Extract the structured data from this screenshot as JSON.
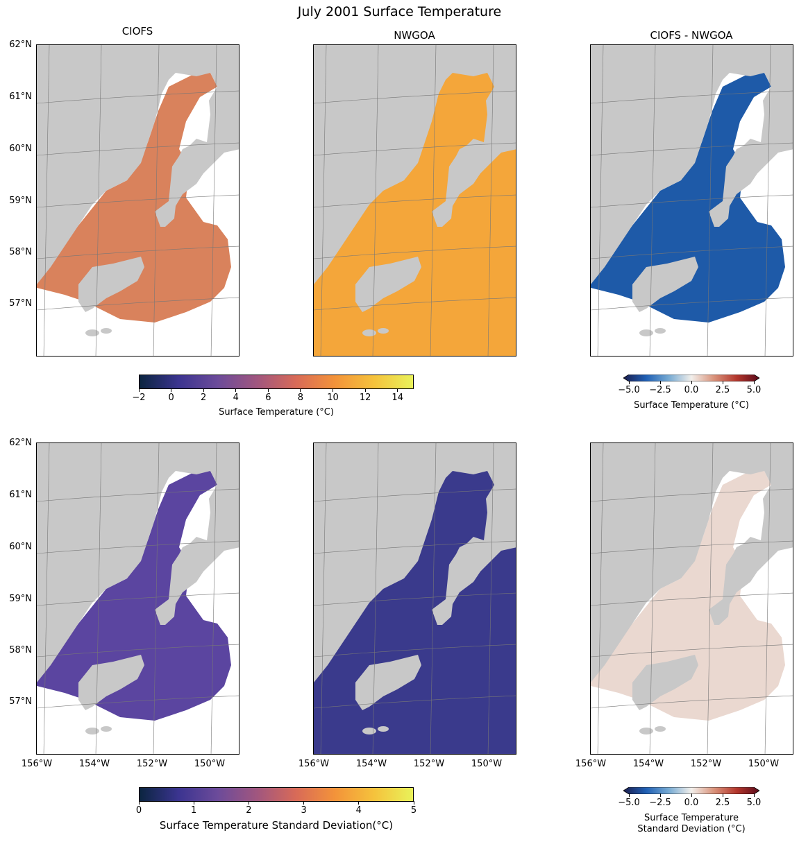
{
  "figure_title": "July 2001 Surface Temperature",
  "panel_titles": [
    "CIOFS",
    "NWGOA",
    "CIOFS - NWGOA"
  ],
  "lat_ticks": [
    "62°N",
    "61°N",
    "60°N",
    "59°N",
    "58°N",
    "57°N"
  ],
  "lon_ticks": [
    "156°W",
    "154°W",
    "152°W",
    "150°W"
  ],
  "colorbars": {
    "temp": {
      "label": "Surface Temperature (°C)",
      "ticks": [
        "−2",
        "0",
        "2",
        "4",
        "6",
        "8",
        "10",
        "12",
        "14"
      ],
      "range": [
        -2,
        15
      ],
      "colors": [
        "#0b2540",
        "#3b3490",
        "#6c4b9a",
        "#a0567f",
        "#d86a58",
        "#f3933a",
        "#f5c23c",
        "#e9f25a"
      ]
    },
    "temp_diff": {
      "label": "Surface Temperature (°C)",
      "ticks": [
        "−5.0",
        "−2.5",
        "0.0",
        "2.5",
        "5.0"
      ],
      "range": [
        -5,
        5
      ],
      "colors": [
        "#1b1d4d",
        "#1f5fb4",
        "#76aad3",
        "#f2efeb",
        "#d9927a",
        "#b3362c",
        "#5a0a1a"
      ]
    },
    "std": {
      "label": "Surface Temperature Standard Deviation(°C)",
      "ticks": [
        "0",
        "1",
        "2",
        "3",
        "4",
        "5"
      ],
      "range": [
        0,
        5
      ],
      "colors": [
        "#0b2540",
        "#3b3490",
        "#6c4b9a",
        "#a0567f",
        "#d86a58",
        "#f3933a",
        "#f5c23c",
        "#e9f25a"
      ]
    },
    "std_diff": {
      "label": "Surface Temperature\nStandard Deviation (°C)",
      "ticks": [
        "−5.0",
        "−2.5",
        "0.0",
        "2.5",
        "5.0"
      ],
      "range": [
        -5,
        5
      ],
      "colors": [
        "#1b1d4d",
        "#1f5fb4",
        "#76aad3",
        "#f2efeb",
        "#d9927a",
        "#b3362c",
        "#5a0a1a"
      ]
    }
  },
  "panel_fills": {
    "ciofs_temp": "#d9825c",
    "nwgoa_temp": "#f4a63a",
    "diff_temp": "#1e5aa8",
    "ciofs_std": "#5b45a0",
    "nwgoa_std": "#3a3a8c",
    "diff_std": "#ead8d0",
    "land": "#c8c8c8",
    "ocean": "#ffffff"
  }
}
